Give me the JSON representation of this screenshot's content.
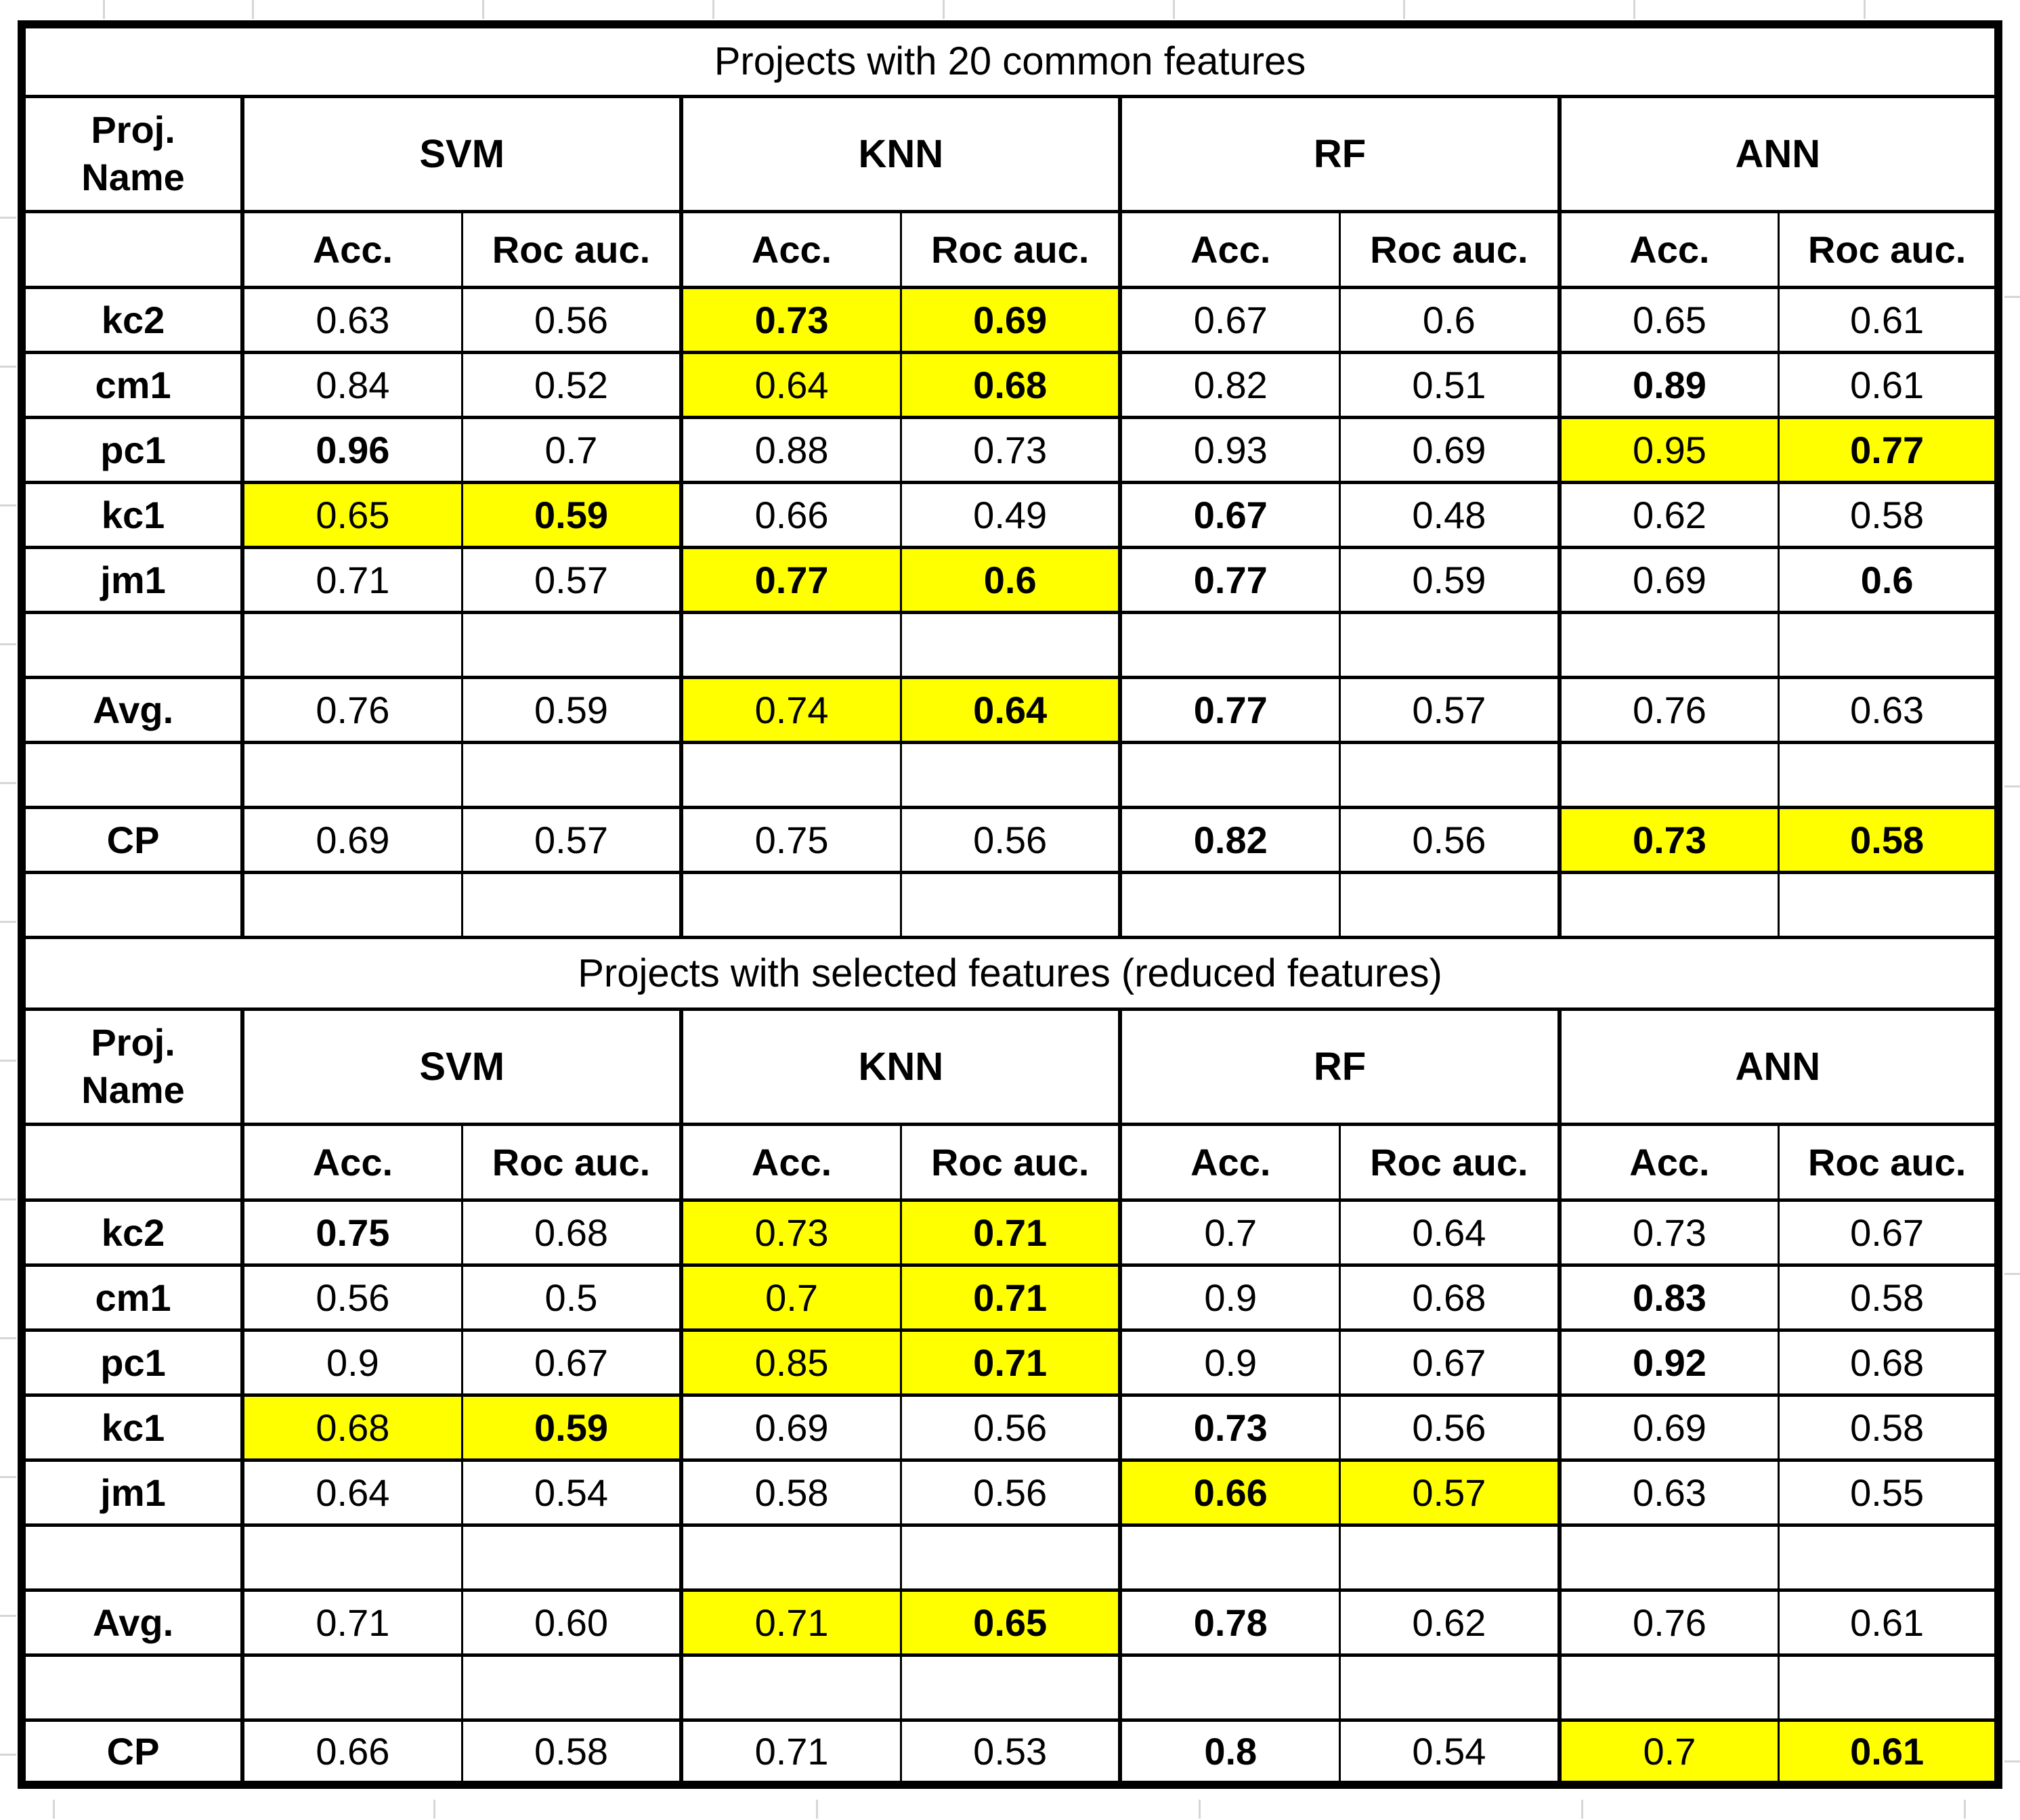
{
  "styles": {
    "highlight_color": "#ffff00",
    "border_color": "#000000",
    "text_color": "#000000",
    "background_color": "#ffffff",
    "gridline_color": "#d6d6d6"
  },
  "chart_data": [
    {
      "type": "table",
      "title": "Projects with 20 common features",
      "corner_header": "Proj.\nName",
      "column_groups": [
        "SVM",
        "KNN",
        "RF",
        "ANN"
      ],
      "metric_headers": [
        "Acc.",
        "Roc auc."
      ],
      "columns": [
        "SVM Acc.",
        "SVM Roc auc.",
        "KNN Acc.",
        "KNN Roc auc.",
        "RF Acc.",
        "RF Roc auc.",
        "ANN Acc.",
        "ANN Roc auc."
      ],
      "rows": [
        {
          "label": "kc2",
          "cells": [
            {
              "text": "0.63"
            },
            {
              "text": "0.56"
            },
            {
              "text": "0.73",
              "bold": true,
              "highlight": true
            },
            {
              "text": "0.69",
              "bold": true,
              "highlight": true
            },
            {
              "text": "0.67"
            },
            {
              "text": "0.6"
            },
            {
              "text": "0.65"
            },
            {
              "text": "0.61"
            }
          ]
        },
        {
          "label": "cm1",
          "cells": [
            {
              "text": "0.84"
            },
            {
              "text": "0.52"
            },
            {
              "text": "0.64",
              "highlight": true
            },
            {
              "text": "0.68",
              "bold": true,
              "highlight": true
            },
            {
              "text": "0.82"
            },
            {
              "text": "0.51"
            },
            {
              "text": "0.89",
              "bold": true
            },
            {
              "text": "0.61"
            }
          ]
        },
        {
          "label": "pc1",
          "cells": [
            {
              "text": "0.96",
              "bold": true
            },
            {
              "text": "0.7"
            },
            {
              "text": "0.88"
            },
            {
              "text": "0.73"
            },
            {
              "text": "0.93"
            },
            {
              "text": "0.69"
            },
            {
              "text": "0.95",
              "highlight": true
            },
            {
              "text": "0.77",
              "bold": true,
              "highlight": true
            }
          ]
        },
        {
          "label": "kc1",
          "cells": [
            {
              "text": "0.65",
              "highlight": true
            },
            {
              "text": "0.59",
              "bold": true,
              "highlight": true
            },
            {
              "text": "0.66"
            },
            {
              "text": "0.49"
            },
            {
              "text": "0.67",
              "bold": true
            },
            {
              "text": "0.48"
            },
            {
              "text": "0.62"
            },
            {
              "text": "0.58"
            }
          ]
        },
        {
          "label": "jm1",
          "cells": [
            {
              "text": "0.71"
            },
            {
              "text": "0.57"
            },
            {
              "text": "0.77",
              "bold": true,
              "highlight": true
            },
            {
              "text": "0.6",
              "bold": true,
              "highlight": true
            },
            {
              "text": "0.77",
              "bold": true
            },
            {
              "text": "0.59"
            },
            {
              "text": "0.69"
            },
            {
              "text": "0.6",
              "bold": true
            }
          ]
        },
        {
          "blank": true
        },
        {
          "label": "Avg.",
          "cells": [
            {
              "text": "0.76"
            },
            {
              "text": "0.59"
            },
            {
              "text": "0.74",
              "highlight": true
            },
            {
              "text": "0.64",
              "bold": true,
              "highlight": true
            },
            {
              "text": "0.77",
              "bold": true
            },
            {
              "text": "0.57"
            },
            {
              "text": "0.76"
            },
            {
              "text": "0.63"
            }
          ]
        },
        {
          "blank": true
        },
        {
          "label": "CP",
          "cells": [
            {
              "text": "0.69"
            },
            {
              "text": "0.57"
            },
            {
              "text": "0.75"
            },
            {
              "text": "0.56"
            },
            {
              "text": "0.82",
              "bold": true
            },
            {
              "text": "0.56"
            },
            {
              "text": "0.73",
              "bold": true,
              "highlight": true
            },
            {
              "text": "0.58",
              "bold": true,
              "highlight": true
            }
          ]
        },
        {
          "blank": true
        }
      ]
    },
    {
      "type": "table",
      "title": "Projects with selected features (reduced features)",
      "corner_header": "Proj.\nName",
      "column_groups": [
        "SVM",
        "KNN",
        "RF",
        "ANN"
      ],
      "metric_headers": [
        "Acc.",
        "Roc auc."
      ],
      "columns": [
        "SVM Acc.",
        "SVM Roc auc.",
        "KNN Acc.",
        "KNN Roc auc.",
        "RF Acc.",
        "RF Roc auc.",
        "ANN Acc.",
        "ANN Roc auc."
      ],
      "rows": [
        {
          "label": "kc2",
          "cells": [
            {
              "text": "0.75",
              "bold": true
            },
            {
              "text": "0.68"
            },
            {
              "text": "0.73",
              "highlight": true
            },
            {
              "text": "0.71",
              "bold": true,
              "highlight": true
            },
            {
              "text": "0.7"
            },
            {
              "text": "0.64"
            },
            {
              "text": "0.73"
            },
            {
              "text": "0.67"
            }
          ]
        },
        {
          "label": "cm1",
          "cells": [
            {
              "text": "0.56"
            },
            {
              "text": "0.5"
            },
            {
              "text": "0.7",
              "highlight": true
            },
            {
              "text": "0.71",
              "bold": true,
              "highlight": true
            },
            {
              "text": "0.9"
            },
            {
              "text": "0.68"
            },
            {
              "text": "0.83",
              "bold": true
            },
            {
              "text": "0.58"
            }
          ]
        },
        {
          "label": "pc1",
          "cells": [
            {
              "text": "0.9"
            },
            {
              "text": "0.67"
            },
            {
              "text": "0.85",
              "highlight": true
            },
            {
              "text": "0.71",
              "bold": true,
              "highlight": true
            },
            {
              "text": "0.9"
            },
            {
              "text": "0.67"
            },
            {
              "text": "0.92",
              "bold": true
            },
            {
              "text": "0.68"
            }
          ]
        },
        {
          "label": "kc1",
          "cells": [
            {
              "text": "0.68",
              "highlight": true
            },
            {
              "text": "0.59",
              "bold": true,
              "highlight": true
            },
            {
              "text": "0.69"
            },
            {
              "text": "0.56"
            },
            {
              "text": "0.73",
              "bold": true
            },
            {
              "text": "0.56"
            },
            {
              "text": "0.69"
            },
            {
              "text": "0.58"
            }
          ]
        },
        {
          "label": "jm1",
          "cells": [
            {
              "text": "0.64"
            },
            {
              "text": "0.54"
            },
            {
              "text": "0.58"
            },
            {
              "text": "0.56"
            },
            {
              "text": "0.66",
              "bold": true,
              "highlight": true
            },
            {
              "text": "0.57",
              "highlight": true
            },
            {
              "text": "0.63"
            },
            {
              "text": "0.55"
            }
          ]
        },
        {
          "blank": true
        },
        {
          "label": "Avg.",
          "cells": [
            {
              "text": "0.71"
            },
            {
              "text": "0.60"
            },
            {
              "text": "0.71",
              "highlight": true
            },
            {
              "text": "0.65",
              "bold": true,
              "highlight": true
            },
            {
              "text": "0.78",
              "bold": true
            },
            {
              "text": "0.62"
            },
            {
              "text": "0.76"
            },
            {
              "text": "0.61"
            }
          ]
        },
        {
          "blank": true
        },
        {
          "label": "CP",
          "cells": [
            {
              "text": "0.66"
            },
            {
              "text": "0.58"
            },
            {
              "text": "0.71"
            },
            {
              "text": "0.53"
            },
            {
              "text": "0.8",
              "bold": true
            },
            {
              "text": "0.54"
            },
            {
              "text": "0.7",
              "highlight": true
            },
            {
              "text": "0.61",
              "bold": true,
              "highlight": true
            }
          ]
        }
      ]
    }
  ]
}
